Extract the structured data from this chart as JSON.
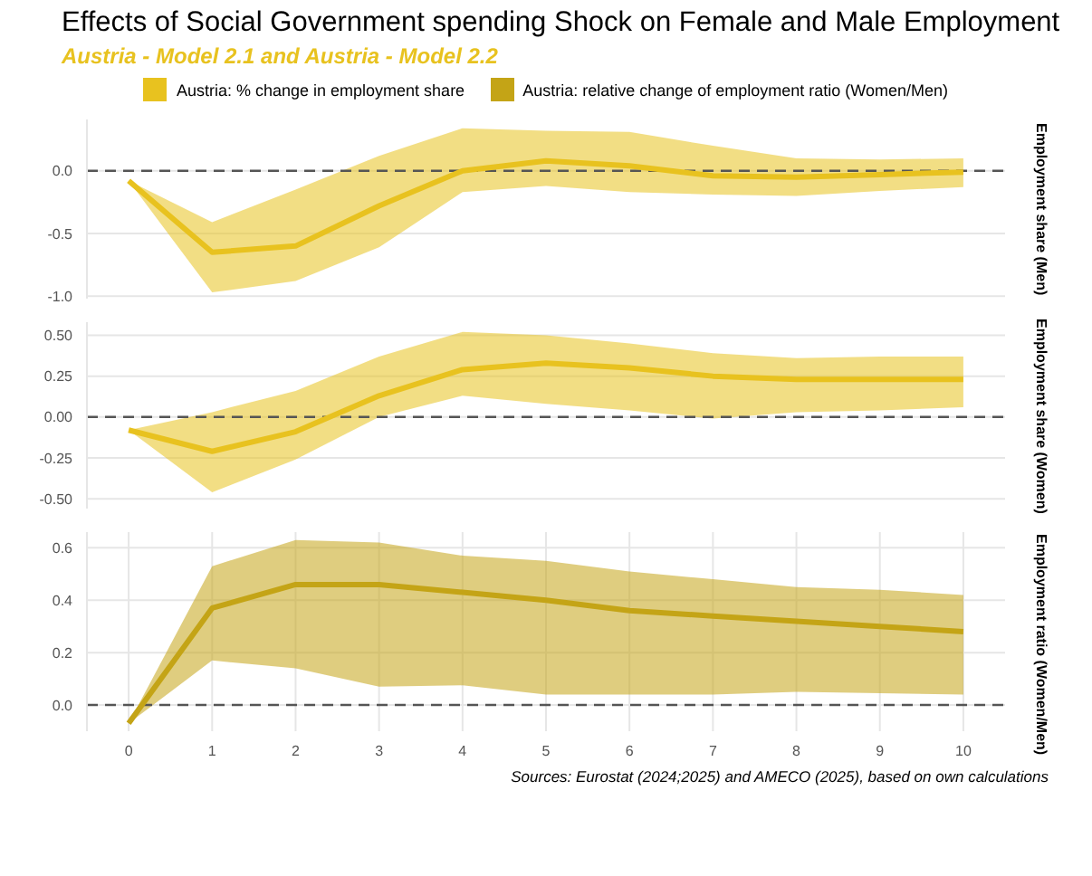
{
  "chart_data": [
    {
      "type": "line",
      "title": "Effects of Social Government spending Shock on Female and Male Employment",
      "subtitle": "Austria - Model 2.1 and Austria - Model 2.2",
      "ylabel": "Employment share (Men)",
      "x": [
        0,
        1,
        2,
        3,
        4,
        5,
        6,
        7,
        8,
        9,
        10
      ],
      "xlim": [
        -0.5,
        10.5
      ],
      "xticks": [
        0,
        1,
        2,
        3,
        4,
        5,
        6,
        7,
        8,
        9,
        10
      ],
      "ylim": [
        -1.02,
        0.41
      ],
      "yticks": [
        {
          "value": -1,
          "label": "-1.0"
        },
        {
          "value": -0.5,
          "label": "-0.5"
        },
        {
          "value": 0,
          "label": "0.0"
        }
      ],
      "tick_labels": "y",
      "grid": true,
      "legend": "top",
      "line_style": "solid",
      "marker": "none",
      "series": [
        {
          "name": "Austria: % change in employment share",
          "color": "#e8c21f",
          "values": [
            -0.08,
            -0.65,
            -0.6,
            -0.28,
            0.0,
            0.08,
            0.04,
            -0.04,
            -0.05,
            -0.03,
            -0.01
          ],
          "lower": [
            -0.08,
            -0.97,
            -0.88,
            -0.61,
            -0.17,
            -0.12,
            -0.17,
            -0.19,
            -0.2,
            -0.16,
            -0.13
          ],
          "upper": [
            -0.08,
            -0.41,
            -0.15,
            0.12,
            0.34,
            0.32,
            0.31,
            0.2,
            0.1,
            0.09,
            0.1
          ]
        }
      ],
      "ref_lines": [
        {
          "axis": "y",
          "value": 0,
          "line_style": "dashed",
          "color": "#555555"
        }
      ]
    },
    {
      "type": "line",
      "ylabel": "Employment share (Women)",
      "x": [
        0,
        1,
        2,
        3,
        4,
        5,
        6,
        7,
        8,
        9,
        10
      ],
      "xlim": [
        -0.5,
        10.5
      ],
      "xticks": [
        0,
        1,
        2,
        3,
        4,
        5,
        6,
        7,
        8,
        9,
        10
      ],
      "ylim": [
        -0.56,
        0.58
      ],
      "yticks": [
        {
          "value": -0.5,
          "label": "-0.50"
        },
        -0.25,
        {
          "value": 0,
          "label": "0.00"
        },
        0.25,
        {
          "value": 0.5,
          "label": "0.50"
        }
      ],
      "tick_labels": "y",
      "grid": true,
      "line_style": "solid",
      "marker": "none",
      "series": [
        {
          "color": "#e8c21f",
          "values": [
            -0.08,
            -0.21,
            -0.09,
            0.13,
            0.29,
            0.33,
            0.3,
            0.25,
            0.23,
            0.23,
            0.23
          ],
          "lower": [
            -0.08,
            -0.46,
            -0.26,
            0.0,
            0.13,
            0.08,
            0.04,
            -0.01,
            0.03,
            0.04,
            0.06
          ],
          "upper": [
            -0.08,
            0.03,
            0.16,
            0.37,
            0.52,
            0.5,
            0.45,
            0.39,
            0.36,
            0.37,
            0.37
          ]
        }
      ],
      "ref_lines": [
        {
          "axis": "y",
          "value": 0,
          "line_style": "dashed",
          "color": "#555555"
        }
      ]
    },
    {
      "type": "line",
      "ylabel": "Employment ratio (Women/Men)",
      "x": [
        0,
        1,
        2,
        3,
        4,
        5,
        6,
        7,
        8,
        9,
        10
      ],
      "xlim": [
        -0.5,
        10.5
      ],
      "xticks": [
        0,
        1,
        2,
        3,
        4,
        5,
        6,
        7,
        8,
        9,
        10
      ],
      "ylim": [
        -0.1,
        0.66
      ],
      "yticks": [
        {
          "value": 0,
          "label": "0.0"
        },
        0.2,
        0.4,
        0.6
      ],
      "grid": true,
      "legend": "top",
      "line_style": "solid",
      "marker": "none",
      "annotations": [
        "Sources: Eurostat (2024;2025) and AMECO (2025), based on own calculations"
      ],
      "series": [
        {
          "name": "Austria: relative change of employment ratio (Women/Men)",
          "color": "#c4a416",
          "values": [
            -0.07,
            0.37,
            0.46,
            0.46,
            0.43,
            0.4,
            0.36,
            0.34,
            0.32,
            0.3,
            0.28
          ],
          "lower": [
            -0.07,
            0.17,
            0.14,
            0.07,
            0.075,
            0.04,
            0.04,
            0.04,
            0.05,
            0.045,
            0.04
          ],
          "upper": [
            -0.07,
            0.53,
            0.63,
            0.62,
            0.57,
            0.55,
            0.51,
            0.48,
            0.45,
            0.44,
            0.42
          ]
        }
      ],
      "ref_lines": [
        {
          "axis": "y",
          "value": 0,
          "line_style": "dashed",
          "color": "#555555"
        }
      ]
    }
  ]
}
